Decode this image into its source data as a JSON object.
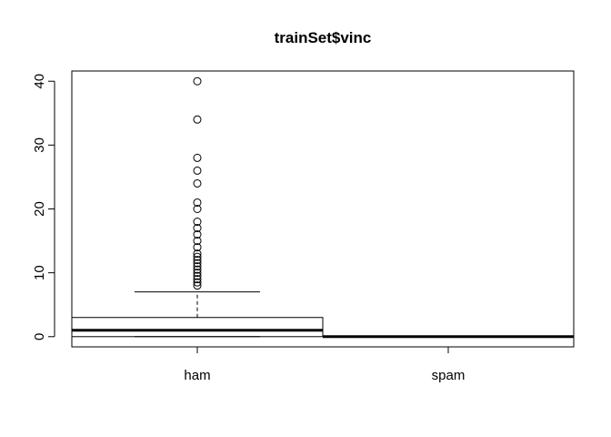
{
  "chart_data": {
    "type": "box",
    "title": "trainSet$vinc",
    "xlabel": "",
    "ylabel": "",
    "categories": [
      "ham",
      "spam"
    ],
    "y_ticks": [
      0,
      10,
      20,
      30,
      40
    ],
    "ylim": [
      -1.6,
      41.6
    ],
    "grid": false,
    "legend": "none",
    "series": [
      {
        "category": "ham",
        "whisker_low": 0,
        "q1": 0,
        "median": 1,
        "q3": 3,
        "whisker_high": 7,
        "outliers": [
          8,
          8.5,
          9,
          9.5,
          10,
          10.5,
          11,
          11.5,
          12,
          12.5,
          13,
          14,
          15,
          16,
          17,
          18,
          20,
          21,
          24,
          26,
          28,
          34,
          40
        ]
      },
      {
        "category": "spam",
        "whisker_low": 0,
        "q1": 0,
        "median": 0,
        "q3": 0,
        "whisker_high": 0,
        "outliers": []
      }
    ]
  }
}
